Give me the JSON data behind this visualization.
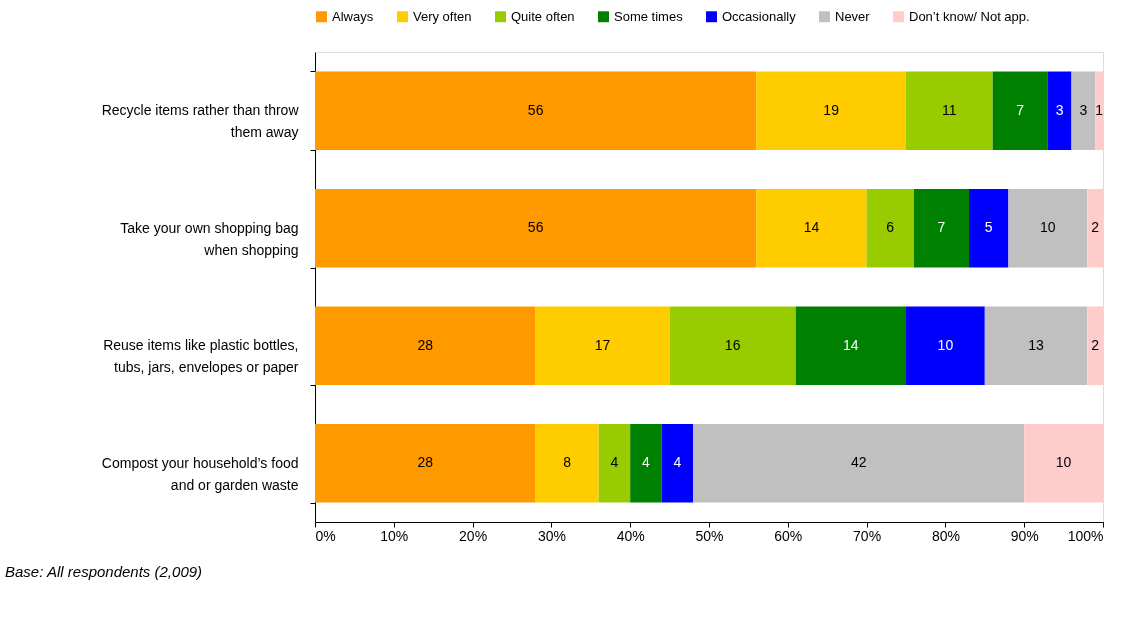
{
  "chart_data": {
    "type": "bar",
    "orientation": "horizontal",
    "stacked": true,
    "data_labels": true,
    "legend": "top",
    "grid": false,
    "categories": [
      "Recycle items rather than throw\nthem away",
      "Take your own shopping bag\nwhen shopping",
      "Reuse items like plastic bottles,\ntubs, jars, envelopes or paper",
      "Compost your household’s food\nand or garden waste"
    ],
    "series": [
      {
        "name": "Always",
        "color": "#ff9900",
        "values": [
          56,
          56,
          28,
          28
        ]
      },
      {
        "name": "Very often",
        "color": "#ffcc00",
        "values": [
          19,
          14,
          17,
          8
        ]
      },
      {
        "name": "Quite often",
        "color": "#99cc00",
        "values": [
          11,
          6,
          16,
          4
        ]
      },
      {
        "name": "Some times",
        "color": "#008000",
        "values": [
          7,
          7,
          14,
          4
        ]
      },
      {
        "name": "Occasionally",
        "color": "#0000ff",
        "values": [
          3,
          5,
          10,
          4
        ]
      },
      {
        "name": "Never",
        "color": "#c0c0c0",
        "values": [
          3,
          10,
          13,
          42
        ]
      },
      {
        "name": "Don’t know/ Not app.",
        "color": "#ffcccc",
        "values": [
          1,
          2,
          2,
          10
        ]
      }
    ],
    "xlim": [
      0,
      100
    ],
    "xticks": [
      {
        "value": 0,
        "label": "0%"
      },
      {
        "value": 10,
        "label": "10%"
      },
      {
        "value": 20,
        "label": "20%"
      },
      {
        "value": 30,
        "label": "30%"
      },
      {
        "value": 40,
        "label": "40%"
      },
      {
        "value": 50,
        "label": "50%"
      },
      {
        "value": 60,
        "label": "60%"
      },
      {
        "value": 70,
        "label": "70%"
      },
      {
        "value": 80,
        "label": "80%"
      },
      {
        "value": 90,
        "label": "90%"
      },
      {
        "value": 100,
        "label": "100%"
      }
    ],
    "annotations": [
      "Base: All respondents (2,009)"
    ]
  }
}
